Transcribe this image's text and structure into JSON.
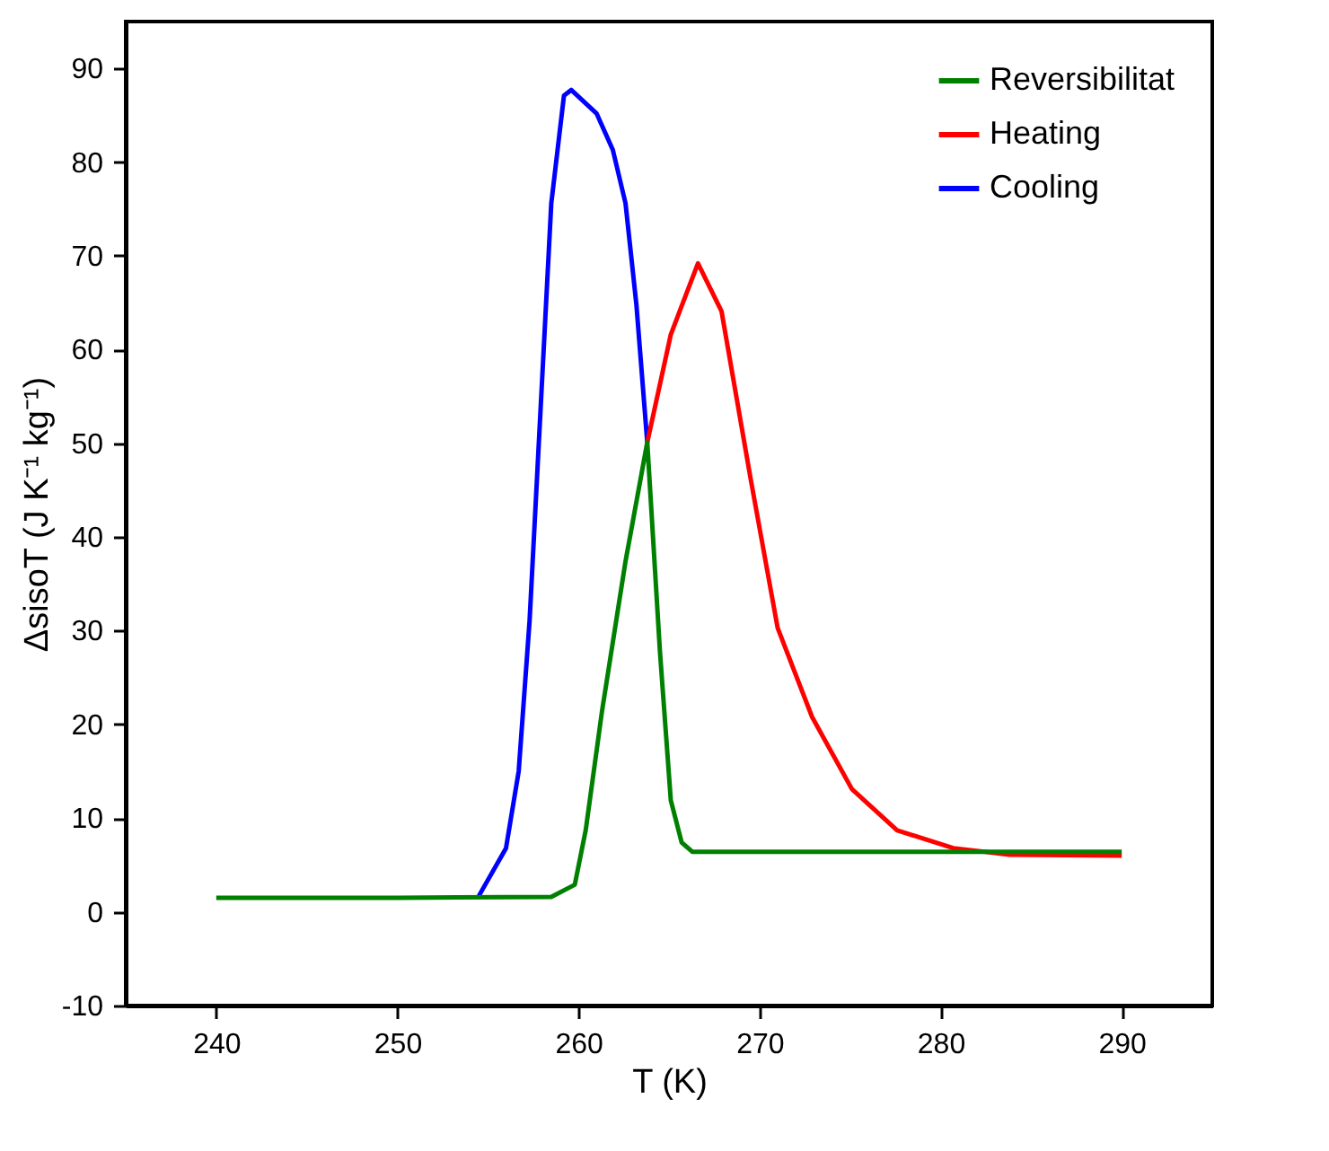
{
  "chart_data": {
    "type": "line",
    "xlabel": "T (K)",
    "ylabel": "ΔsisoT (J K⁻¹ kg⁻¹)",
    "xlim": [
      235,
      295
    ],
    "ylim": [
      -10,
      95
    ],
    "xticks": [
      240,
      250,
      260,
      270,
      280,
      290
    ],
    "yticks": [
      -10,
      0,
      10,
      20,
      30,
      40,
      50,
      60,
      70,
      80,
      90
    ],
    "legend": "top right",
    "marker": "none",
    "line_style": "solid",
    "series": [
      {
        "name": "Reversibilitat",
        "color": "#008000",
        "x": [
          240,
          250,
          258.5,
          259.8,
          260.4,
          261.3,
          262.6,
          263.8,
          264.5,
          265.1,
          265.7,
          266.3,
          270,
          280,
          290
        ],
        "values": [
          1.5,
          1.5,
          1.6,
          2.9,
          8.7,
          21.4,
          37.4,
          50.1,
          27.8,
          11.9,
          7.4,
          6.4,
          6.4,
          6.4,
          6.4
        ]
      },
      {
        "name": "Heating",
        "color": "#ff0000",
        "x": [
          263.8,
          265.1,
          266.6,
          267.9,
          269.5,
          271.0,
          272.9,
          275.1,
          277.6,
          280.7,
          283.8,
          290
        ],
        "values": [
          50.1,
          61.6,
          69.2,
          64.1,
          46.3,
          30.3,
          20.8,
          13.1,
          8.7,
          6.8,
          6.1,
          6.0
        ]
      },
      {
        "name": "Cooling",
        "color": "#0000ff",
        "x": [
          254.5,
          256.0,
          256.7,
          257.3,
          257.9,
          258.5,
          259.2,
          259.6,
          261.0,
          261.9,
          262.6,
          263.2,
          263.8
        ],
        "values": [
          1.7,
          6.8,
          15.0,
          31.0,
          53.3,
          75.6,
          87.1,
          87.7,
          85.2,
          81.3,
          75.6,
          64.8,
          50.1
        ]
      }
    ]
  }
}
